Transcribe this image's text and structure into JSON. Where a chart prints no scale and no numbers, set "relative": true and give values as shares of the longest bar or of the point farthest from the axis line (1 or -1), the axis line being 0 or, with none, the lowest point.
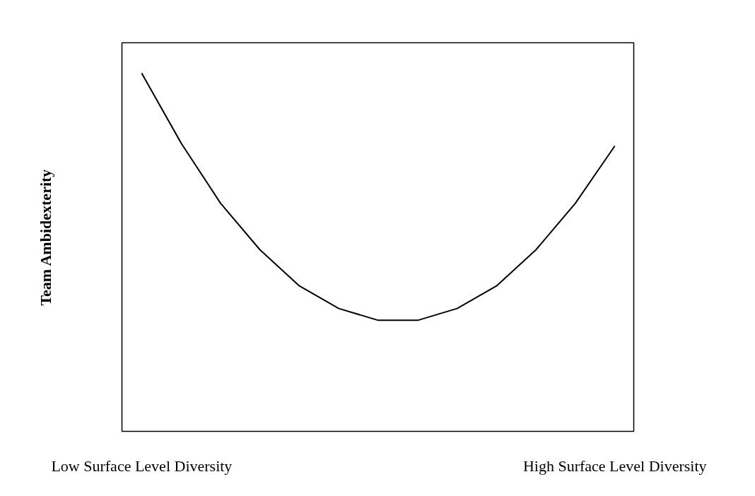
{
  "chart_data": {
    "type": "line",
    "relative": true,
    "ylabel": "Team Ambidexterity",
    "color": "#000000",
    "categories": [
      "Low Surface Level Diversity",
      null,
      null,
      null,
      null,
      null,
      null,
      null,
      null,
      null,
      null,
      null,
      "High Surface Level Diversity"
    ],
    "values": [
      1,
      0.805,
      0.637,
      0.507,
      0.406,
      0.343,
      0.31,
      0.31,
      0.343,
      0.406,
      0.507,
      0.637,
      0.797
    ]
  }
}
